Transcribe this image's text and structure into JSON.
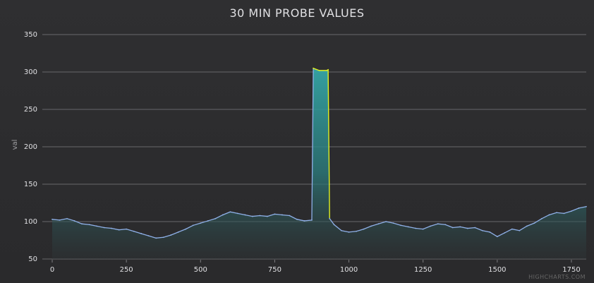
{
  "chart_data": {
    "type": "area",
    "title": "30 MIN PROBE VALUES",
    "ylabel": "val",
    "xlabel": "",
    "xlim": [
      0,
      1800
    ],
    "ylim": [
      50,
      350
    ],
    "x_ticks": [
      "0",
      "250",
      "500",
      "750",
      "1000",
      "1250",
      "1500",
      "1750"
    ],
    "y_ticks": [
      "50",
      "100",
      "150",
      "200",
      "250",
      "300",
      "350"
    ],
    "grid": true,
    "legend": "none",
    "series": [
      {
        "name": "",
        "x_step": 25,
        "x": [
          0,
          25,
          50,
          75,
          100,
          125,
          150,
          175,
          200,
          225,
          250,
          275,
          300,
          325,
          350,
          375,
          400,
          425,
          450,
          475,
          500,
          525,
          550,
          575,
          600,
          625,
          650,
          675,
          700,
          725,
          750,
          775,
          800,
          825,
          850,
          875,
          880,
          900,
          925,
          930,
          935,
          950,
          975,
          1000,
          1025,
          1050,
          1075,
          1100,
          1125,
          1150,
          1175,
          1200,
          1225,
          1250,
          1275,
          1300,
          1325,
          1350,
          1375,
          1400,
          1425,
          1450,
          1475,
          1500,
          1525,
          1550,
          1575,
          1600,
          1625,
          1650,
          1675,
          1700,
          1725,
          1750,
          1775,
          1800
        ],
        "values": [
          103,
          102,
          104,
          101,
          97,
          96,
          94,
          92,
          91,
          89,
          90,
          87,
          84,
          81,
          78,
          79,
          82,
          86,
          90,
          95,
          98,
          101,
          104,
          109,
          113,
          111,
          109,
          107,
          108,
          107,
          110,
          109,
          108,
          103,
          101,
          102,
          305,
          302,
          302,
          303,
          104,
          96,
          88,
          86,
          87,
          90,
          94,
          97,
          100,
          98,
          95,
          93,
          91,
          90,
          94,
          97,
          96,
          92,
          93,
          91,
          92,
          88,
          86,
          80,
          85,
          90,
          88,
          94,
          98,
          104,
          109,
          112,
          111,
          114,
          118,
          120
        ],
        "color_line": "#8fb0e8",
        "color_spike": "#e0f020",
        "color_fill": "#3aa6a3"
      }
    ],
    "credits": "HIGHCHARTS.COM"
  }
}
